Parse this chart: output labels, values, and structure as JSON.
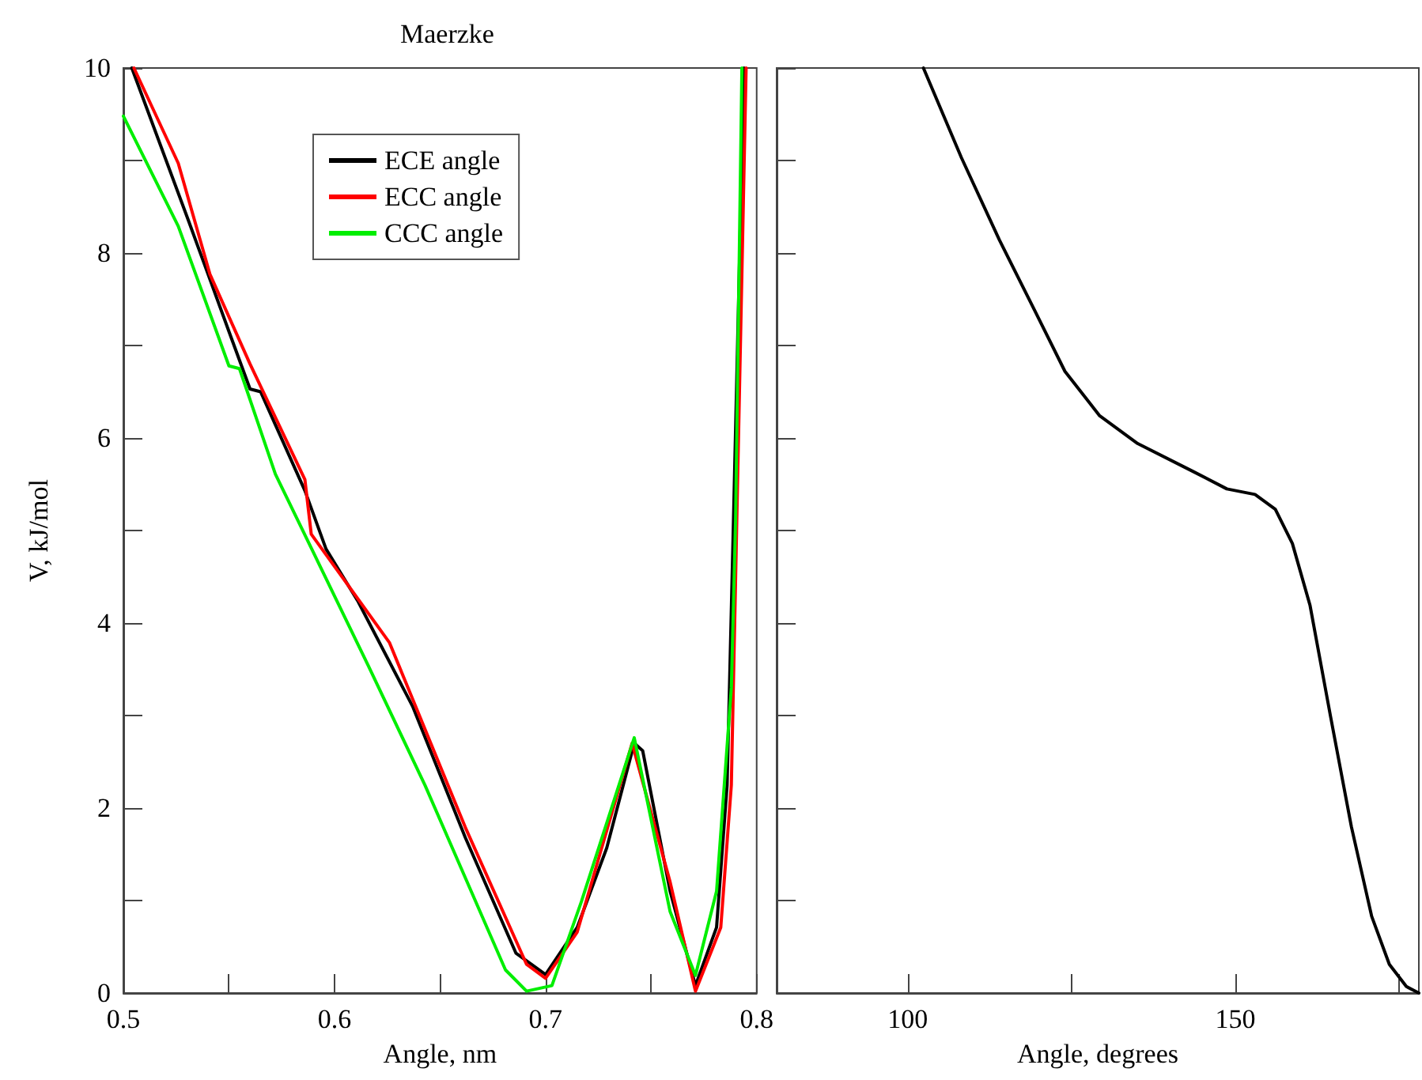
{
  "chart_data": [
    {
      "type": "line",
      "title": "Maerzke",
      "xlabel": "Angle, nm",
      "ylabel": "V, kJ/mol",
      "legend": "top",
      "xlim": [
        0.5,
        0.8
      ],
      "xticks": [
        0.5,
        {
          "value": 0.55,
          "label": null
        },
        0.6,
        {
          "value": 0.65,
          "label": null
        },
        0.7,
        {
          "value": 0.75,
          "label": null
        },
        0.8
      ],
      "ylim": [
        0,
        10
      ],
      "yticks": [
        0,
        {
          "value": 1,
          "label": null
        },
        2,
        {
          "value": 3,
          "label": null
        },
        4,
        {
          "value": 5,
          "label": null
        },
        6,
        {
          "value": 7,
          "label": null
        },
        8,
        {
          "value": 9,
          "label": null
        },
        10
      ],
      "series": [
        {
          "name": "ECE angle",
          "color": "#000000",
          "x": [
            0.504,
            0.531,
            0.551,
            0.56,
            0.565,
            0.586,
            0.596,
            0.611,
            0.637,
            0.662,
            0.686,
            0.7,
            0.715,
            0.729,
            0.742,
            0.746,
            0.759,
            0.771,
            0.781,
            0.786,
            0.789,
            0.794
          ],
          "values": [
            10,
            8.34,
            7.09,
            6.53,
            6.5,
            5.43,
            4.8,
            4.24,
            3.1,
            1.68,
            0.43,
            0.2,
            0.71,
            1.57,
            2.7,
            2.62,
            1.1,
            0.08,
            0.71,
            2.25,
            5.1,
            10
          ]
        },
        {
          "name": "ECC angle",
          "color": "#ff0000",
          "x": [
            0.505,
            0.526,
            0.541,
            0.56,
            0.586,
            0.589,
            0.626,
            0.662,
            0.691,
            0.7,
            0.715,
            0.741,
            0.759,
            0.771,
            0.783,
            0.788,
            0.795
          ],
          "values": [
            10,
            8.97,
            7.77,
            6.8,
            5.55,
            4.96,
            3.79,
            1.79,
            0.31,
            0.16,
            0.66,
            2.7,
            1.2,
            0.02,
            0.71,
            2.25,
            10
          ]
        },
        {
          "name": "CCC angle",
          "color": "#00ee00",
          "x": [
            0.5,
            0.526,
            0.55,
            0.555,
            0.572,
            0.589,
            0.616,
            0.643,
            0.681,
            0.691,
            0.703,
            0.717,
            0.742,
            0.759,
            0.771,
            0.781,
            0.788,
            0.79,
            0.793
          ],
          "values": [
            9.48,
            8.29,
            6.78,
            6.75,
            5.61,
            4.81,
            3.54,
            2.24,
            0.25,
            0.02,
            0.08,
            0.99,
            2.76,
            0.88,
            0.19,
            1.1,
            3.3,
            5.1,
            10
          ]
        }
      ]
    },
    {
      "type": "line",
      "xlabel": "Angle, degrees",
      "tick_labels": "x",
      "xlim": [
        80,
        178
      ],
      "xticks": [
        100,
        {
          "value": 125,
          "label": null
        },
        150,
        {
          "value": 175,
          "label": null
        }
      ],
      "ylim": [
        0,
        10
      ],
      "yticks": [
        0,
        {
          "value": 1,
          "label": null
        },
        {
          "value": 2,
          "label": null
        },
        {
          "value": 3,
          "label": null
        },
        {
          "value": 4,
          "label": null
        },
        {
          "value": 5,
          "label": null
        },
        {
          "value": 6,
          "label": null
        },
        {
          "value": 7,
          "label": null
        },
        {
          "value": 8,
          "label": null
        },
        {
          "value": 9,
          "label": null
        },
        {
          "value": 10,
          "label": null
        }
      ],
      "series": [
        {
          "color": "#000000",
          "x": [
            102.4,
            108.2,
            114,
            119.3,
            124,
            129.3,
            135.1,
            143.5,
            148.7,
            153,
            156.1,
            158.7,
            161.4,
            164.5,
            167.7,
            170.8,
            173.5,
            176.1,
            178
          ],
          "values": [
            10,
            9.03,
            8.14,
            7.39,
            6.72,
            6.24,
            5.94,
            5.64,
            5.45,
            5.39,
            5.23,
            4.86,
            4.19,
            3.0,
            1.8,
            0.83,
            0.31,
            0.07,
            0
          ]
        }
      ]
    }
  ]
}
